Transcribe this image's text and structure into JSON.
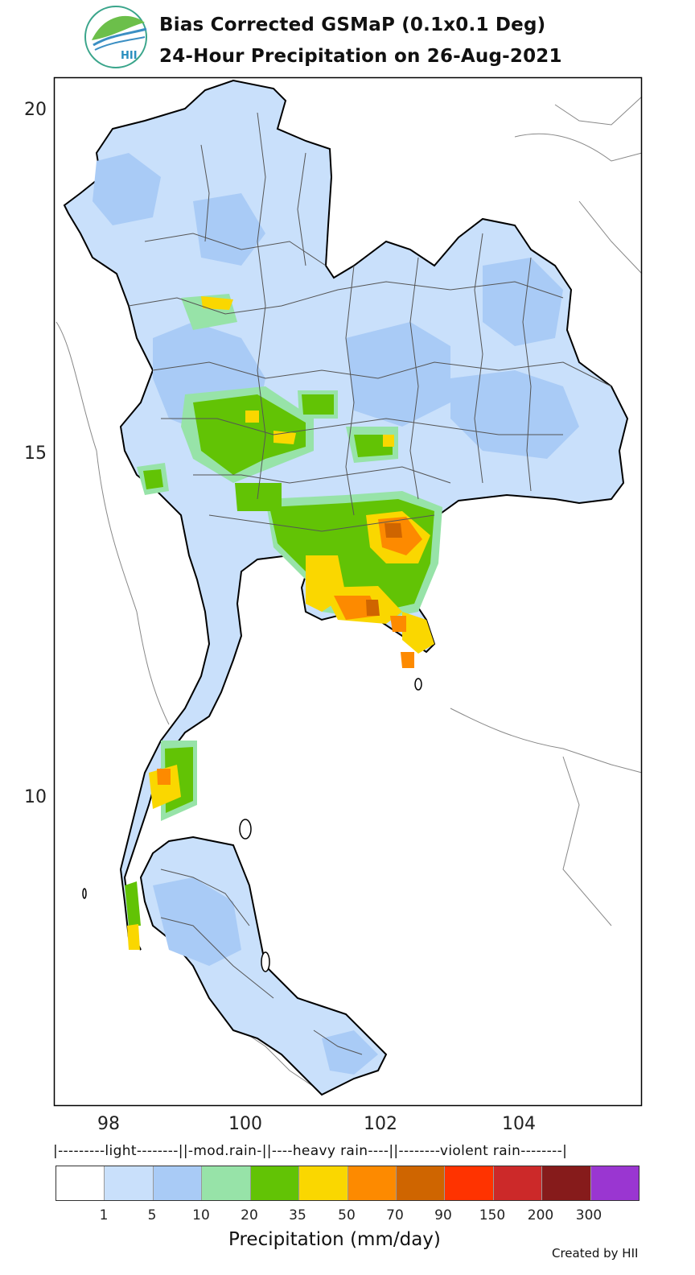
{
  "header": {
    "title_line1": "Bias Corrected GSMaP (0.1x0.1 Deg)",
    "title_line2": "24-Hour Precipitation on 26-Aug-2021",
    "logo_text": "HII"
  },
  "map": {
    "y_ticks": [
      "20",
      "15",
      "10"
    ],
    "x_ticks": [
      "98",
      "100",
      "102",
      "104"
    ],
    "fill_light": "#c9e0fb",
    "fill_mid": "#a9cbf6",
    "coast_color": "#000000",
    "border_color": "#555555"
  },
  "legend": {
    "categories_line": "|---------light--------||-mod.rain-||----heavy rain----||--------violent rain--------|",
    "colors": [
      "#ffffff",
      "#c9e0fb",
      "#a9cbf6",
      "#97e3a8",
      "#62c305",
      "#fad700",
      "#fd8a00",
      "#cf6500",
      "#ff3300",
      "#cc2929",
      "#861b1b",
      "#9a36d1"
    ],
    "labels": [
      "1",
      "5",
      "10",
      "20",
      "35",
      "50",
      "70",
      "90",
      "150",
      "200",
      "300"
    ],
    "xlabel": "Precipitation (mm/day)"
  },
  "footer": {
    "credit": "Created by HII"
  }
}
